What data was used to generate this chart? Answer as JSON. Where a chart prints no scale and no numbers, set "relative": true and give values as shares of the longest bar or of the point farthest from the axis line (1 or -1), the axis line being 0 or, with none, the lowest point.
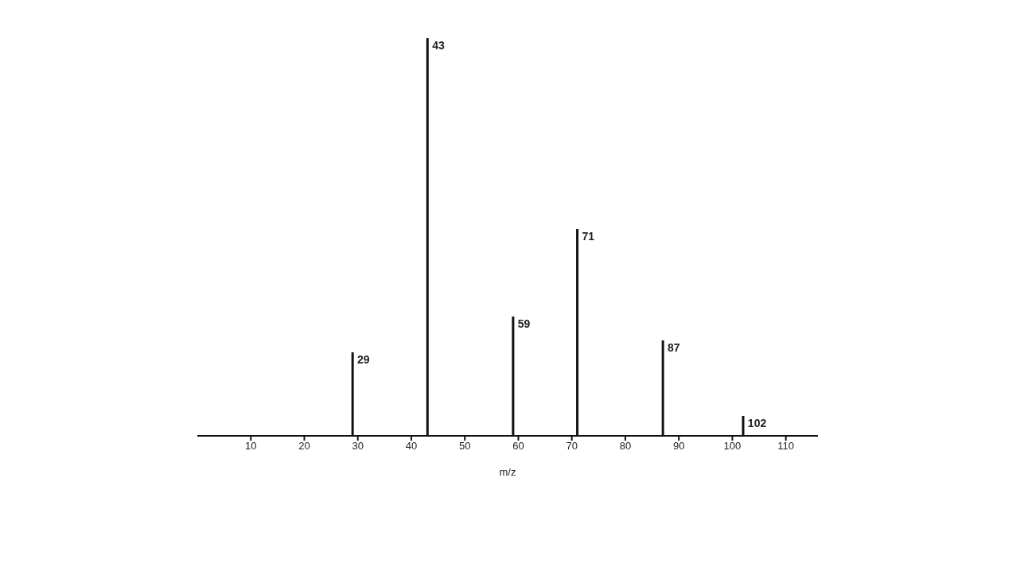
{
  "chart_data": {
    "type": "bar",
    "xlabel": "m/z",
    "relative": true,
    "x": [
      29,
      43,
      59,
      71,
      87,
      102
    ],
    "values": [
      0.21,
      1,
      0.3,
      0.52,
      0.24,
      0.05
    ],
    "annotations": [
      {
        "text": "29",
        "x": 29,
        "y": 0.21
      },
      {
        "text": "43",
        "x": 43,
        "y": 1
      },
      {
        "text": "59",
        "x": 59,
        "y": 0.3
      },
      {
        "text": "71",
        "x": 71,
        "y": 0.52
      },
      {
        "text": "87",
        "x": 87,
        "y": 0.24
      },
      {
        "text": "102",
        "x": 102,
        "y": 0.05
      }
    ],
    "color": "#111111",
    "xlim": [
      0,
      116
    ],
    "xticks": [
      10,
      20,
      30,
      40,
      50,
      60,
      70,
      80,
      90,
      100,
      110
    ]
  }
}
